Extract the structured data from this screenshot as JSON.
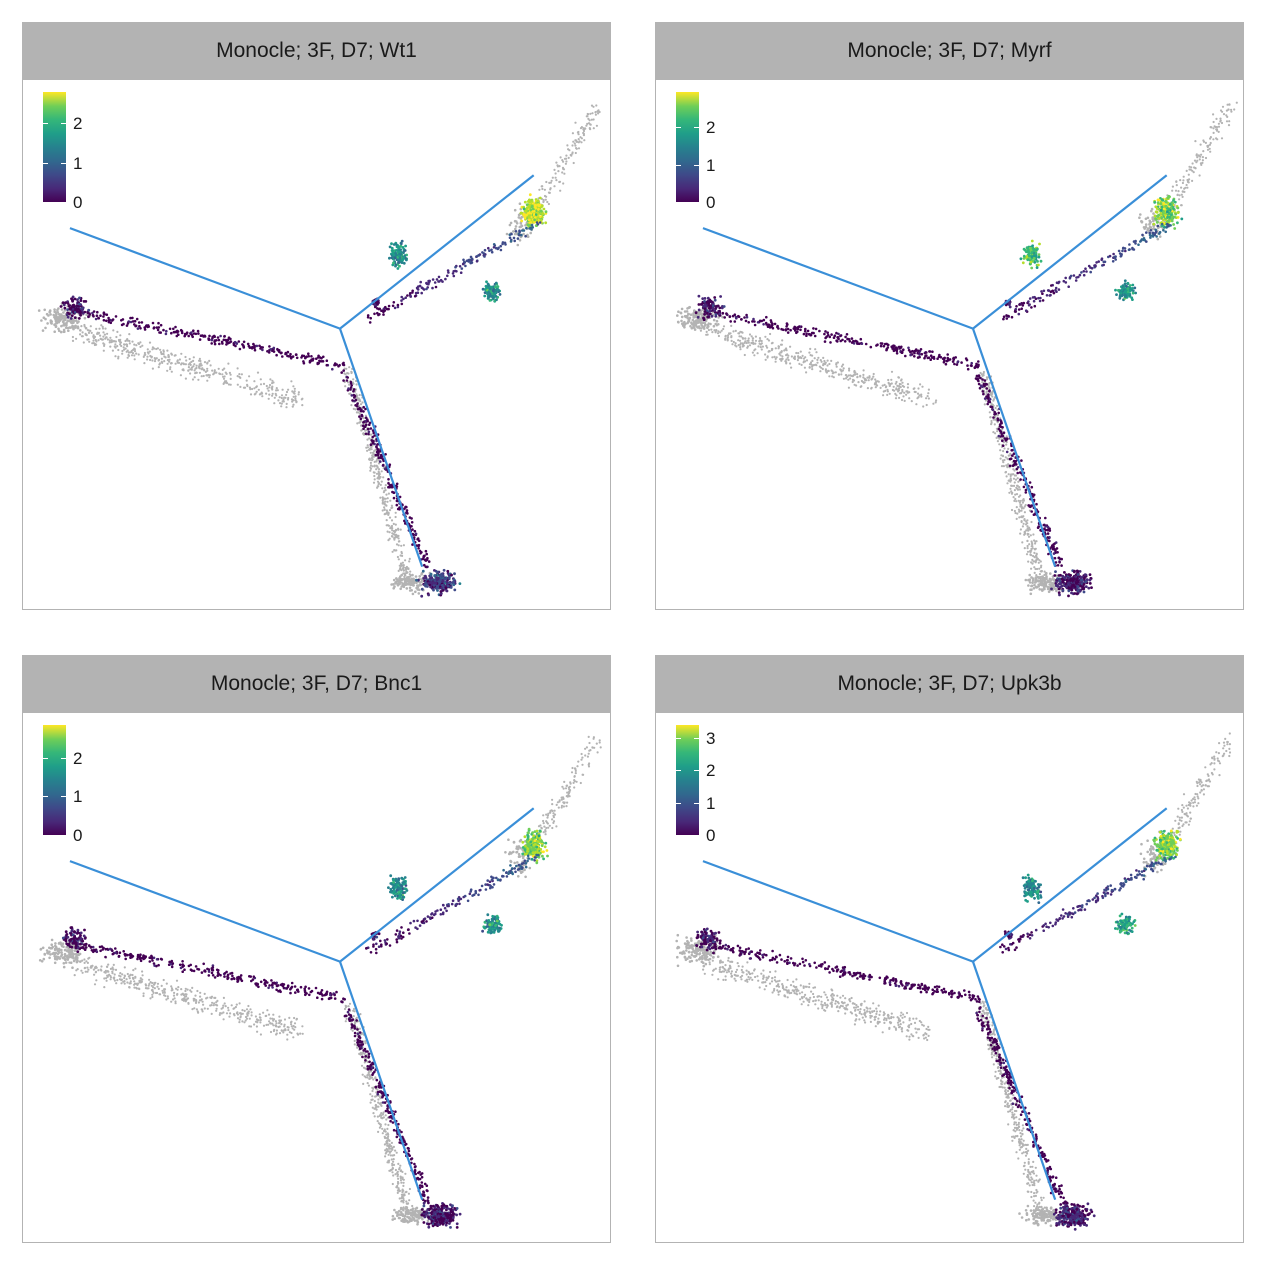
{
  "figure": {
    "panels": [
      {
        "title": "Monocle; 3F, D7; Wt1",
        "legend_ticks": [
          "0",
          "1",
          "2"
        ],
        "legend_max": 2.8
      },
      {
        "title": "Monocle; 3F, D7; Myrf",
        "legend_ticks": [
          "0",
          "1",
          "2"
        ],
        "legend_max": 2.95
      },
      {
        "title": "Monocle; 3F, D7; Bnc1",
        "legend_ticks": [
          "0",
          "1",
          "2"
        ],
        "legend_max": 2.85
      },
      {
        "title": "Monocle; 3F, D7; Upk3b",
        "legend_ticks": [
          "0",
          "1",
          "2",
          "3"
        ],
        "legend_max": 3.4
      }
    ]
  },
  "chart_data": {
    "type": "scatter",
    "description_colors": {
      "colormap": "viridis",
      "no_expression": "#b3b3b3",
      "trajectory": "#3a8fd8",
      "strip_background": "#b3b3b3"
    },
    "trajectory_branches": [
      {
        "name": "left-branch",
        "from": [
          0.08,
          0.72
        ],
        "to": [
          0.54,
          0.53
        ]
      },
      {
        "name": "bottom-branch",
        "from": [
          0.54,
          0.53
        ],
        "to": [
          0.68,
          0.08
        ]
      },
      {
        "name": "upper-branch",
        "from": [
          0.54,
          0.53
        ],
        "to": [
          0.87,
          0.82
        ]
      }
    ],
    "grid": false,
    "legend_placement": "top-left"
  }
}
